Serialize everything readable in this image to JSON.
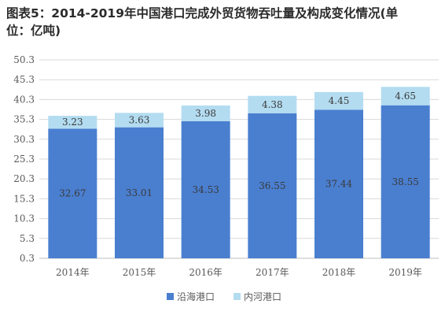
{
  "title": {
    "line1": "图表5：2014-2019年中国港口完成外贸货物吞吐量及构成变化情况(单",
    "line2": "位：亿吨)"
  },
  "colors": {
    "coastal": "#4a7fd0",
    "inland": "#b3dcf1",
    "grid": "#d9d9d9",
    "axis": "#bfbfbf"
  },
  "chart_data": {
    "type": "bar",
    "stacked": true,
    "categories": [
      "2014年",
      "2015年",
      "2016年",
      "2017年",
      "2018年",
      "2019年"
    ],
    "series": [
      {
        "name": "沿海港口",
        "values": [
          32.67,
          33.01,
          34.53,
          36.55,
          37.44,
          38.55
        ]
      },
      {
        "name": "内河港口",
        "values": [
          3.23,
          3.63,
          3.98,
          4.38,
          4.45,
          4.65
        ]
      }
    ],
    "yticks": [
      "0.3",
      "5.3",
      "10.3",
      "15.3",
      "20.3",
      "25.3",
      "30.3",
      "35.3",
      "40.3",
      "45.3",
      "50.3"
    ],
    "ylim": [
      0.3,
      50.3
    ],
    "grid": true,
    "legend": "bottom-center"
  }
}
